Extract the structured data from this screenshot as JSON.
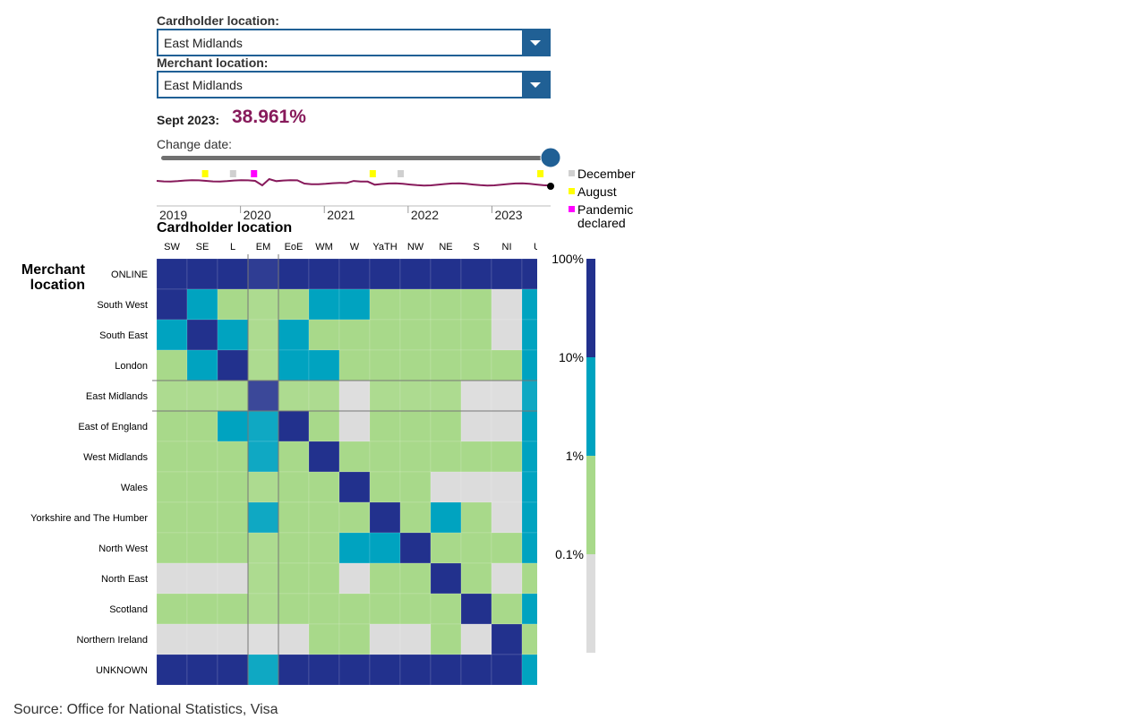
{
  "filters": {
    "cardholder_label": "Cardholder location:",
    "cardholder_value": "East Midlands",
    "merchant_label": "Merchant location:",
    "merchant_value": "East Midlands"
  },
  "readout": {
    "date_label": "Sept 2023:",
    "value": "38.961%"
  },
  "slider": {
    "label": "Change date:",
    "value": 1.0
  },
  "timeline": {
    "years": [
      "2019",
      "2020",
      "2021",
      "2022",
      "2023"
    ],
    "legend": [
      {
        "label": "December",
        "color": "#d0d0d0"
      },
      {
        "label": "August",
        "color": "#ffff00"
      },
      {
        "label": "Pandemic",
        "label2": "declared",
        "color": "#ff00ff"
      }
    ]
  },
  "colors": {
    "accent": "#206095",
    "value": "#871a5b",
    "band_high": "#22318d",
    "band_mid": "#00a3c0",
    "band_low": "#a8d98a",
    "band_none": "#dcdcdc"
  },
  "chart_data": {
    "type": "heatmap",
    "title": "Cardholder location",
    "ylabel": "Merchant location",
    "columns": [
      "SW",
      "SE",
      "L",
      "EM",
      "EoE",
      "WM",
      "W",
      "YaTH",
      "NW",
      "NE",
      "S",
      "NI",
      "U"
    ],
    "rows": [
      "ONLINE",
      "South West",
      "South East",
      "London",
      "East Midlands",
      "East of England",
      "West Midlands",
      "Wales",
      "Yorkshire and The Humber",
      "North West",
      "North East",
      "Scotland",
      "Northern Ireland",
      "UNKNOWN"
    ],
    "bands": [
      "<0.1%",
      "0.1%–1%",
      "1%–10%",
      "10%–100%"
    ],
    "band_codes": [
      [
        3,
        3,
        3,
        3,
        3,
        3,
        3,
        3,
        3,
        3,
        3,
        3,
        3
      ],
      [
        3,
        2,
        1,
        1,
        1,
        2,
        2,
        1,
        1,
        1,
        1,
        0,
        2
      ],
      [
        2,
        3,
        2,
        1,
        2,
        1,
        1,
        1,
        1,
        1,
        1,
        0,
        2
      ],
      [
        1,
        2,
        3,
        1,
        2,
        2,
        1,
        1,
        1,
        1,
        1,
        1,
        2
      ],
      [
        1,
        1,
        1,
        3,
        1,
        1,
        0,
        1,
        1,
        1,
        0,
        0,
        2
      ],
      [
        1,
        1,
        2,
        2,
        3,
        1,
        0,
        1,
        1,
        1,
        0,
        0,
        2
      ],
      [
        1,
        1,
        1,
        2,
        1,
        3,
        1,
        1,
        1,
        1,
        1,
        1,
        2
      ],
      [
        1,
        1,
        1,
        1,
        1,
        1,
        3,
        1,
        1,
        0,
        0,
        0,
        2
      ],
      [
        1,
        1,
        1,
        2,
        1,
        1,
        1,
        3,
        1,
        2,
        1,
        0,
        2
      ],
      [
        1,
        1,
        1,
        1,
        1,
        1,
        2,
        2,
        3,
        1,
        1,
        1,
        2
      ],
      [
        0,
        0,
        0,
        1,
        1,
        1,
        0,
        1,
        1,
        3,
        1,
        0,
        1
      ],
      [
        1,
        1,
        1,
        1,
        1,
        1,
        1,
        1,
        1,
        1,
        3,
        1,
        2
      ],
      [
        0,
        0,
        0,
        0,
        0,
        1,
        1,
        0,
        0,
        1,
        0,
        3,
        1
      ],
      [
        3,
        3,
        3,
        2,
        3,
        3,
        3,
        3,
        3,
        3,
        3,
        3,
        2
      ]
    ],
    "selected_row": "East Midlands",
    "selected_column": "EM",
    "selected_value_percent": 38.961,
    "scale_ticks": [
      "100%",
      "10%",
      "1%",
      "0.1%"
    ]
  },
  "source": "Source: Office for National Statistics, Visa"
}
